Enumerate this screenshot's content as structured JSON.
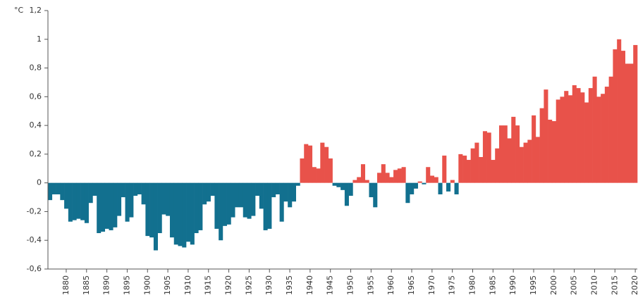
{
  "chart_data": {
    "type": "bar",
    "unit_label": "°C",
    "x": [
      1876,
      1877,
      1878,
      1879,
      1880,
      1881,
      1882,
      1883,
      1884,
      1885,
      1886,
      1887,
      1888,
      1889,
      1890,
      1891,
      1892,
      1893,
      1894,
      1895,
      1896,
      1897,
      1898,
      1899,
      1900,
      1901,
      1902,
      1903,
      1904,
      1905,
      1906,
      1907,
      1908,
      1909,
      1910,
      1911,
      1912,
      1913,
      1914,
      1915,
      1916,
      1917,
      1918,
      1919,
      1920,
      1921,
      1922,
      1923,
      1924,
      1925,
      1926,
      1927,
      1928,
      1929,
      1930,
      1931,
      1932,
      1933,
      1934,
      1935,
      1936,
      1937,
      1938,
      1939,
      1940,
      1941,
      1942,
      1943,
      1944,
      1945,
      1946,
      1947,
      1948,
      1949,
      1950,
      1951,
      1952,
      1953,
      1954,
      1955,
      1956,
      1957,
      1958,
      1959,
      1960,
      1961,
      1962,
      1963,
      1964,
      1965,
      1966,
      1967,
      1968,
      1969,
      1970,
      1971,
      1972,
      1973,
      1974,
      1975,
      1976,
      1977,
      1978,
      1979,
      1980,
      1981,
      1982,
      1983,
      1984,
      1985,
      1986,
      1987,
      1988,
      1989,
      1990,
      1991,
      1992,
      1993,
      1994,
      1995,
      1996,
      1997,
      1998,
      1999,
      2000,
      2001,
      2002,
      2003,
      2004,
      2005,
      2006,
      2007,
      2008,
      2009,
      2010,
      2011,
      2012,
      2013,
      2014,
      2015,
      2016,
      2017,
      2018,
      2019,
      2020
    ],
    "values": [
      -0.12,
      -0.08,
      -0.08,
      -0.12,
      -0.18,
      -0.27,
      -0.26,
      -0.25,
      -0.26,
      -0.28,
      -0.14,
      -0.09,
      -0.35,
      -0.34,
      -0.32,
      -0.33,
      -0.31,
      -0.23,
      -0.1,
      -0.27,
      -0.24,
      -0.09,
      -0.08,
      -0.15,
      -0.37,
      -0.38,
      -0.47,
      -0.35,
      -0.22,
      -0.23,
      -0.38,
      -0.43,
      -0.44,
      -0.45,
      -0.41,
      -0.43,
      -0.35,
      -0.33,
      -0.15,
      -0.13,
      -0.09,
      -0.32,
      -0.4,
      -0.3,
      -0.29,
      -0.24,
      -0.17,
      -0.17,
      -0.24,
      -0.25,
      -0.23,
      -0.09,
      -0.18,
      -0.33,
      -0.32,
      -0.1,
      -0.08,
      -0.27,
      -0.13,
      -0.17,
      -0.13,
      -0.02,
      0.17,
      0.27,
      0.26,
      0.11,
      0.1,
      0.28,
      0.25,
      0.17,
      -0.02,
      -0.03,
      -0.05,
      -0.16,
      -0.09,
      0.02,
      0.04,
      0.13,
      0.02,
      -0.1,
      -0.17,
      0.07,
      0.13,
      0.07,
      0.04,
      0.09,
      0.1,
      0.11,
      -0.14,
      -0.08,
      -0.04,
      0.01,
      -0.01,
      0.11,
      0.05,
      0.04,
      -0.08,
      0.19,
      -0.06,
      0.02,
      -0.08,
      0.2,
      0.19,
      0.16,
      0.24,
      0.28,
      0.18,
      0.36,
      0.35,
      0.16,
      0.24,
      0.4,
      0.4,
      0.31,
      0.46,
      0.4,
      0.25,
      0.28,
      0.3,
      0.47,
      0.32,
      0.52,
      0.65,
      0.44,
      0.43,
      0.58,
      0.6,
      0.64,
      0.61,
      0.68,
      0.66,
      0.63,
      0.56,
      0.66,
      0.74,
      0.6,
      0.62,
      0.67,
      0.74,
      0.93,
      1.0,
      0.92,
      0.83,
      0.83,
      0.96
    ],
    "positive_color": "#e8524a",
    "negative_color": "#12708f",
    "xlim": [
      1875.5,
      2020.5
    ],
    "xticks": [
      1880,
      1885,
      1890,
      1895,
      1900,
      1905,
      1910,
      1915,
      1920,
      1925,
      1930,
      1935,
      1940,
      1945,
      1950,
      1955,
      1960,
      1965,
      1970,
      1975,
      1980,
      1985,
      1990,
      1995,
      2000,
      2005,
      2010,
      2015,
      2020
    ],
    "ylim": [
      -0.6,
      1.2
    ],
    "yticks": [
      {
        "value": 1.2,
        "label": "1,2"
      },
      1,
      {
        "value": 0.8,
        "label": "0,8"
      },
      {
        "value": 0.6,
        "label": "0,6"
      },
      {
        "value": 0.4,
        "label": "0,4"
      },
      {
        "value": 0.2,
        "label": "0,2"
      },
      0,
      {
        "value": -0.2,
        "label": "-0,2"
      },
      {
        "value": -0.4,
        "label": "-0,4"
      },
      {
        "value": -0.6,
        "label": "-0,6"
      }
    ],
    "grid": false
  }
}
